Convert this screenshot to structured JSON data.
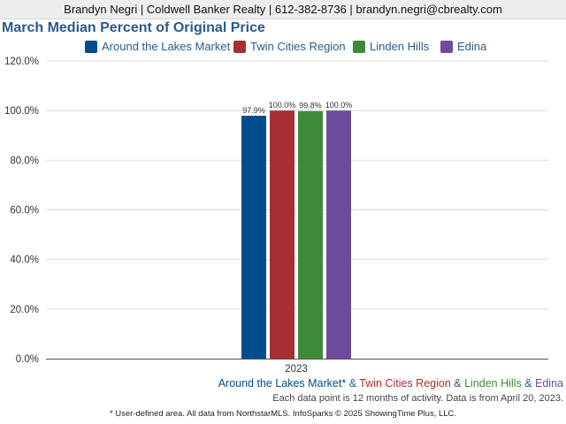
{
  "header": {
    "contact": "Brandyn Negri | Coldwell Banker Realty | 612-382-8736 | brandyn.negri@cbrealty.com"
  },
  "legend": [
    {
      "label": "Around the Lakes Market",
      "color": "#004d8c"
    },
    {
      "label": "Twin Cities Region",
      "color": "#a62f33"
    },
    {
      "label": "Linden Hills",
      "color": "#3f8a3a"
    },
    {
      "label": "Edina",
      "color": "#6e4b9f"
    }
  ],
  "caption": {
    "s1": "Around the Lakes Market*",
    "sep1": " & ",
    "s2": "Twin Cities Region",
    "sep2": " & ",
    "s3": "Linden Hills",
    "sep3": " & ",
    "s4": "Edina"
  },
  "note": "Each data point is 12 months of activity. Data is from April 20, 2023.",
  "footer": "* User-defined area. All data from NorthstarMLS. InfoSparks © 2025 ShowingTime Plus, LLC.",
  "chart_data": {
    "type": "bar",
    "title": "March Median Percent of Original Price",
    "categories": [
      "2023"
    ],
    "series": [
      {
        "name": "Around the Lakes Market",
        "values": [
          97.9
        ],
        "label": "97.9%",
        "color": "#004d8c"
      },
      {
        "name": "Twin Cities Region",
        "values": [
          100.0
        ],
        "label": "100.0%",
        "color": "#a62f33"
      },
      {
        "name": "Linden Hills",
        "values": [
          99.8
        ],
        "label": "99.8%",
        "color": "#3f8a3a"
      },
      {
        "name": "Edina",
        "values": [
          100.0
        ],
        "label": "100.0%",
        "color": "#6e4b9f"
      }
    ],
    "ylim": [
      0,
      120
    ],
    "yticks": [
      0,
      20,
      40,
      60,
      80,
      100,
      120
    ],
    "ytick_labels": [
      "0.0%",
      "20.0%",
      "40.0%",
      "60.0%",
      "80.0%",
      "100.0%",
      "120.0%"
    ],
    "grid": true,
    "legend_position": "top"
  }
}
